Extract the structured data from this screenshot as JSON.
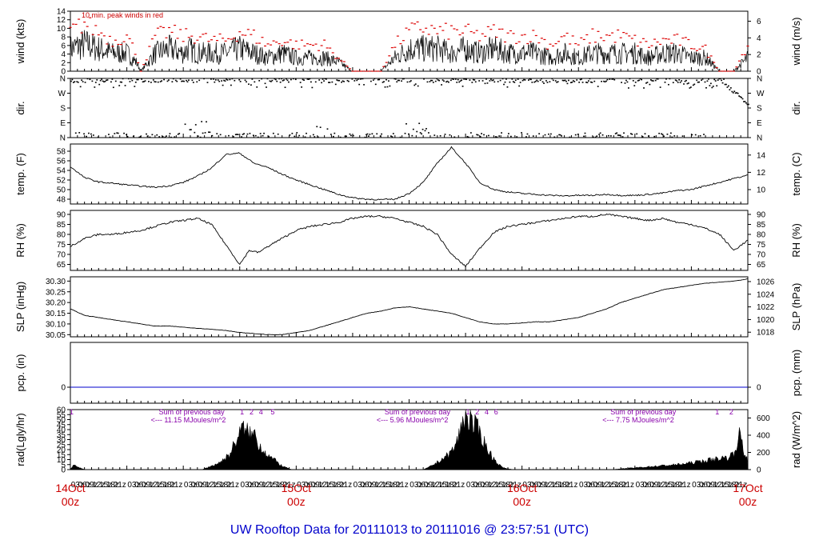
{
  "title": "UW Rooftop Data for 20111013  to  20111016 @ 23:57:51  (UTC)",
  "x_ticks": [
    "03z",
    "06z",
    "09z",
    "12z",
    "15z",
    "18z",
    "21z",
    "03z",
    "06z",
    "09z",
    "12z",
    "15z",
    "18z",
    "21z",
    "03z",
    "06z",
    "09z",
    "12z",
    "15z",
    "18z",
    "21z"
  ],
  "day_labels": [
    {
      "date": "14Oct",
      "time": "00z"
    },
    {
      "date": "15Oct",
      "time": "00z"
    },
    {
      "date": "16Oct",
      "time": "00z"
    },
    {
      "date": "17Oct",
      "time": "00z"
    }
  ],
  "colors": {
    "peak": "#dd0000",
    "zero_line": "#0000cc",
    "day_labels": "#cc0000",
    "title": "#0000cc",
    "annot": "#8800aa"
  },
  "chart_data": [
    {
      "id": "wind",
      "type": "area",
      "ylabel": "wind (kts)",
      "ylabel_right": "wind (m/s)",
      "ylim": [
        0,
        14
      ],
      "yticks": [
        0,
        2,
        4,
        6,
        8,
        10,
        12,
        14
      ],
      "yticks_right": [
        "0",
        "2",
        "4",
        "6"
      ],
      "annotation": "10 min. peak winds in red",
      "x_hours": [
        0,
        6,
        12,
        18,
        24,
        28,
        30,
        36,
        42,
        48,
        50,
        54,
        60,
        66,
        72,
        78,
        84,
        90,
        96,
        102,
        108,
        114,
        120,
        126,
        132,
        138,
        144,
        150,
        156,
        162,
        168,
        174,
        180,
        186,
        192,
        198,
        204,
        210,
        216,
        222,
        228,
        234,
        240,
        246,
        252,
        258,
        264,
        270,
        276,
        282,
        288
      ],
      "values": [
        5,
        6,
        5,
        4,
        4,
        2,
        0,
        4,
        5,
        4,
        5,
        4,
        4,
        4,
        5,
        4,
        3,
        4,
        3,
        3,
        3,
        2,
        0,
        0,
        0,
        3,
        5,
        5,
        5,
        4,
        5,
        4,
        5,
        4,
        4,
        4,
        3,
        4,
        3,
        4,
        4,
        4,
        4,
        3,
        4,
        4,
        3,
        3,
        0,
        0,
        3
      ],
      "peaks": [
        9,
        11,
        9,
        7,
        8,
        4,
        0,
        8,
        9,
        8,
        8,
        8,
        7,
        7,
        9,
        8,
        6,
        7,
        6,
        6,
        6,
        3,
        0,
        0,
        0,
        6,
        9,
        10,
        9,
        9,
        9,
        8,
        9,
        8,
        8,
        8,
        6,
        8,
        6,
        8,
        8,
        8,
        7,
        6,
        7,
        7,
        6,
        5,
        0,
        0,
        6
      ]
    },
    {
      "id": "dir",
      "type": "scatter",
      "ylabel": "dir.",
      "ylabel_right": "dir.",
      "ylim": [
        0,
        360
      ],
      "yticks": [
        "N",
        "E",
        "S",
        "W",
        "N"
      ],
      "yticks_values": [
        0,
        90,
        180,
        270,
        360
      ]
    },
    {
      "id": "temp",
      "type": "line",
      "ylabel": "temp. (F)",
      "ylabel_right": "temp. (C)",
      "ylim": [
        47,
        59.5
      ],
      "yticks": [
        48,
        50,
        52,
        54,
        56,
        58
      ],
      "yticks_right": [
        "10",
        "12",
        "14"
      ],
      "x_hours": [
        0,
        6,
        12,
        18,
        24,
        30,
        36,
        42,
        48,
        54,
        60,
        66,
        72,
        78,
        84,
        90,
        96,
        102,
        108,
        114,
        120,
        126,
        132,
        138,
        144,
        150,
        156,
        162,
        168,
        174,
        180,
        186,
        192,
        198,
        204,
        210,
        216,
        222,
        228,
        234,
        240,
        246,
        252,
        258,
        264,
        270,
        276,
        282,
        288
      ],
      "values": [
        54.8,
        52.5,
        51.6,
        51.3,
        51.0,
        50.7,
        50.5,
        50.8,
        51.5,
        52.8,
        54.5,
        57.3,
        57.6,
        55.5,
        54.6,
        53.2,
        52.0,
        51.0,
        50.0,
        49.0,
        48.3,
        48.0,
        47.9,
        48.0,
        49.2,
        51.5,
        55.5,
        58.8,
        55.5,
        51.5,
        50.0,
        49.5,
        49.2,
        49.0,
        48.8,
        48.7,
        48.8,
        48.8,
        49.0,
        48.8,
        48.8,
        49.0,
        49.3,
        49.8,
        50.0,
        50.8,
        51.5,
        52.3,
        53.0
      ]
    },
    {
      "id": "rh",
      "type": "line",
      "ylabel": "RH (%)",
      "ylabel_right": "RH (%)",
      "ylim": [
        62,
        92
      ],
      "yticks": [
        65,
        70,
        75,
        80,
        85,
        90
      ],
      "yticks_right": [
        "65",
        "70",
        "75",
        "80",
        "85",
        "90"
      ],
      "x_hours": [
        0,
        6,
        12,
        18,
        24,
        30,
        36,
        42,
        48,
        54,
        60,
        66,
        72,
        76,
        80,
        84,
        90,
        96,
        102,
        108,
        114,
        120,
        126,
        132,
        138,
        144,
        150,
        156,
        162,
        168,
        174,
        180,
        186,
        192,
        198,
        204,
        210,
        216,
        222,
        228,
        234,
        240,
        246,
        252,
        258,
        264,
        270,
        276,
        282,
        288
      ],
      "values": [
        74,
        78,
        80,
        80,
        81,
        82,
        84,
        86,
        87,
        88,
        85,
        75,
        65,
        72,
        71,
        74,
        78,
        82,
        84,
        85,
        86,
        88,
        89,
        89,
        88,
        86,
        84,
        80,
        70,
        64,
        73,
        81,
        84,
        85,
        86,
        87,
        88,
        89,
        89,
        90,
        89,
        88,
        87,
        88,
        86,
        85,
        83,
        80,
        72,
        77
      ]
    },
    {
      "id": "slp",
      "type": "line",
      "ylabel": "SLP (inHg)",
      "ylabel_right": "SLP (hPa)",
      "ylim": [
        30.04,
        30.32
      ],
      "yticks": [
        30.05,
        30.1,
        30.15,
        30.2,
        30.25,
        30.3
      ],
      "yticks_right": [
        "1018",
        "1020",
        "1022",
        "1024",
        "1026"
      ],
      "x_hours": [
        0,
        6,
        12,
        18,
        24,
        30,
        36,
        42,
        48,
        54,
        60,
        66,
        72,
        78,
        84,
        90,
        96,
        102,
        108,
        114,
        120,
        126,
        132,
        138,
        144,
        150,
        156,
        162,
        168,
        174,
        180,
        186,
        192,
        198,
        204,
        210,
        216,
        222,
        228,
        234,
        240,
        246,
        252,
        258,
        264,
        270,
        276,
        282,
        288
      ],
      "values": [
        30.17,
        30.14,
        30.13,
        30.12,
        30.11,
        30.1,
        30.09,
        30.09,
        30.085,
        30.08,
        30.075,
        30.07,
        30.06,
        30.055,
        30.05,
        30.05,
        30.06,
        30.07,
        30.09,
        30.11,
        30.13,
        30.15,
        30.16,
        30.175,
        30.18,
        30.17,
        30.16,
        30.15,
        30.13,
        30.11,
        30.1,
        30.1,
        30.105,
        30.11,
        30.11,
        30.12,
        30.13,
        30.15,
        30.17,
        30.2,
        30.22,
        30.24,
        30.26,
        30.27,
        30.28,
        30.29,
        30.295,
        30.3,
        30.31
      ]
    },
    {
      "id": "pcp",
      "type": "line",
      "ylabel": "pcp. (in)",
      "ylabel_right": "pcp. (mm)",
      "ylim": [
        -0.5,
        1.4
      ],
      "yticks": [
        0
      ],
      "yticks_right": [
        "0"
      ],
      "x_hours": [
        0,
        288
      ],
      "values": [
        0,
        0
      ]
    },
    {
      "id": "rad",
      "type": "area",
      "ylabel": "rad(Lgly/hr)",
      "ylabel_right": "rad (W/m^2)",
      "ylim": [
        0,
        60
      ],
      "yticks": [
        0,
        5,
        10,
        15,
        20,
        25,
        30,
        35,
        40,
        45,
        50,
        55,
        60
      ],
      "yticks_right": [
        "0",
        "200",
        "400",
        "600"
      ],
      "x_hours": [
        0,
        1,
        2,
        3,
        4,
        5,
        6,
        56,
        58,
        60,
        62,
        64,
        66,
        68,
        70,
        72,
        73,
        74,
        75,
        76,
        77,
        78,
        80,
        82,
        84,
        86,
        88,
        90,
        92,
        94,
        98,
        150,
        152,
        154,
        156,
        158,
        160,
        162,
        164,
        166,
        167,
        168,
        169,
        170,
        171,
        172,
        174,
        176,
        178,
        180,
        182,
        184,
        186,
        188,
        190,
        230,
        240,
        250,
        260,
        265,
        270,
        275,
        280,
        282,
        284,
        285,
        286,
        287,
        288
      ],
      "values": [
        0,
        4,
        5,
        4,
        2,
        1,
        0,
        0,
        2,
        4,
        6,
        9,
        13,
        18,
        30,
        40,
        44,
        46,
        40,
        45,
        35,
        42,
        28,
        22,
        16,
        12,
        8,
        4,
        2,
        0,
        0,
        0,
        2,
        5,
        8,
        12,
        15,
        20,
        28,
        45,
        55,
        62,
        58,
        55,
        50,
        48,
        42,
        30,
        20,
        12,
        6,
        2,
        1,
        0,
        0,
        0,
        2,
        4,
        6,
        8,
        10,
        12,
        14,
        18,
        35,
        40,
        20,
        15,
        12
      ],
      "annotations": [
        {
          "x_hours": 24,
          "line1": "Sum of previous day",
          "line2": "<--- 11.15 MJoules/m^2"
        },
        {
          "x_hours": 120,
          "line1": "Sum of previous day",
          "line2": "<--- 5.96 MJoules/m^2"
        },
        {
          "x_hours": 216,
          "line1": "Sum of previous day",
          "line2": "<--- 7.75 MJoules/m^2"
        }
      ],
      "hour_marks": [
        {
          "x_hours": 0.5,
          "label": "1"
        },
        {
          "x_hours": 73,
          "label": "1"
        },
        {
          "x_hours": 77,
          "label": "2"
        },
        {
          "x_hours": 81,
          "label": "4"
        },
        {
          "x_hours": 86,
          "label": "5"
        },
        {
          "x_hours": 169,
          "label": "1"
        },
        {
          "x_hours": 173,
          "label": "2"
        },
        {
          "x_hours": 177,
          "label": "4"
        },
        {
          "x_hours": 181,
          "label": "6"
        },
        {
          "x_hours": 275,
          "label": "1"
        },
        {
          "x_hours": 281,
          "label": "2"
        }
      ]
    }
  ]
}
